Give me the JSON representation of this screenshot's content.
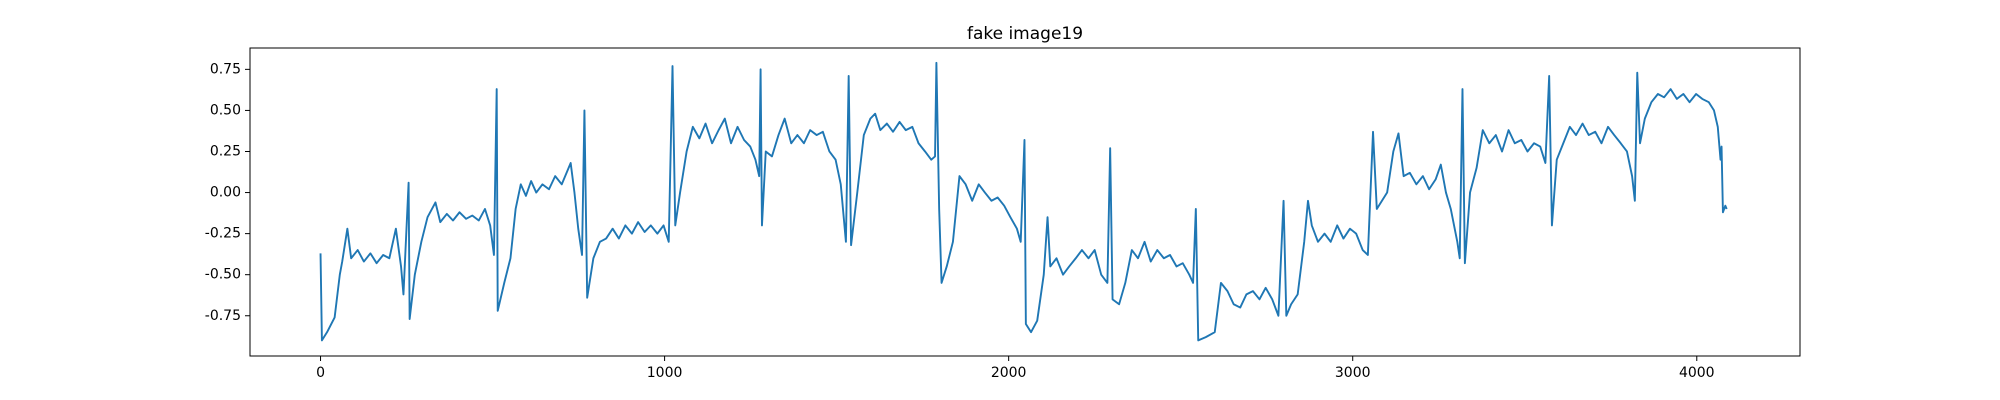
{
  "chart_data": {
    "type": "line",
    "title": "fake image19",
    "color": "#1f77b4",
    "x": [
      0,
      4,
      19,
      41,
      56,
      63,
      78,
      89,
      108,
      126,
      145,
      163,
      182,
      200,
      219,
      234,
      241,
      256,
      259,
      274,
      293,
      311,
      334,
      348,
      367,
      385,
      404,
      423,
      441,
      460,
      478,
      493,
      504,
      512,
      515,
      534,
      552,
      567,
      582,
      597,
      612,
      627,
      645,
      664,
      682,
      701,
      715,
      727,
      738,
      749,
      760,
      767,
      775,
      793,
      812,
      830,
      849,
      867,
      886,
      905,
      923,
      942,
      960,
      979,
      997,
      1012,
      1023,
      1031,
      1045,
      1064,
      1082,
      1101,
      1119,
      1138,
      1157,
      1175,
      1193,
      1212,
      1231,
      1249,
      1264,
      1275,
      1279,
      1283,
      1294,
      1312,
      1331,
      1349,
      1368,
      1386,
      1405,
      1423,
      1442,
      1460,
      1479,
      1497,
      1512,
      1527,
      1535,
      1542,
      1560,
      1579,
      1598,
      1612,
      1627,
      1646,
      1664,
      1683,
      1701,
      1720,
      1738,
      1757,
      1775,
      1786,
      1790,
      1798,
      1805,
      1820,
      1838,
      1857,
      1875,
      1894,
      1913,
      1931,
      1950,
      1968,
      1987,
      2005,
      2024,
      2035,
      2046,
      2050,
      2065,
      2083,
      2102,
      2113,
      2121,
      2139,
      2158,
      2176,
      2195,
      2213,
      2232,
      2250,
      2269,
      2287,
      2295,
      2302,
      2321,
      2339,
      2358,
      2376,
      2395,
      2413,
      2432,
      2451,
      2469,
      2488,
      2506,
      2525,
      2536,
      2544,
      2551,
      2573,
      2599,
      2617,
      2636,
      2654,
      2673,
      2691,
      2710,
      2729,
      2747,
      2766,
      2784,
      2799,
      2807,
      2821,
      2840,
      2859,
      2870,
      2881,
      2899,
      2918,
      2936,
      2955,
      2973,
      2992,
      3010,
      3029,
      3044,
      3059,
      3070,
      3085,
      3100,
      3118,
      3133,
      3148,
      3166,
      3185,
      3204,
      3222,
      3241,
      3256,
      3271,
      3285,
      3304,
      3311,
      3319,
      3326,
      3341,
      3360,
      3378,
      3397,
      3416,
      3434,
      3453,
      3471,
      3490,
      3508,
      3527,
      3545,
      3560,
      3571,
      3579,
      3593,
      3612,
      3631,
      3649,
      3668,
      3686,
      3705,
      3723,
      3742,
      3760,
      3779,
      3797,
      3812,
      3820,
      3827,
      3835,
      3849,
      3868,
      3887,
      3905,
      3924,
      3942,
      3961,
      3979,
      3998,
      4016,
      4035,
      4050,
      4061,
      4069,
      4072,
      4076,
      4083,
      4087
    ],
    "values": [
      -0.37,
      -0.9,
      -0.85,
      -0.76,
      -0.5,
      -0.42,
      -0.22,
      -0.4,
      -0.35,
      -0.42,
      -0.37,
      -0.43,
      -0.38,
      -0.4,
      -0.22,
      -0.45,
      -0.62,
      0.06,
      -0.77,
      -0.5,
      -0.3,
      -0.15,
      -0.06,
      -0.18,
      -0.13,
      -0.17,
      -0.12,
      -0.16,
      -0.14,
      -0.17,
      -0.1,
      -0.2,
      -0.38,
      0.63,
      -0.72,
      -0.55,
      -0.4,
      -0.1,
      0.05,
      -0.02,
      0.07,
      0.0,
      0.05,
      0.02,
      0.1,
      0.05,
      0.12,
      0.18,
      0.0,
      -0.22,
      -0.38,
      0.5,
      -0.64,
      -0.4,
      -0.3,
      -0.28,
      -0.22,
      -0.28,
      -0.2,
      -0.25,
      -0.18,
      -0.24,
      -0.2,
      -0.25,
      -0.2,
      -0.3,
      0.77,
      -0.2,
      0.0,
      0.25,
      0.4,
      0.33,
      0.42,
      0.3,
      0.38,
      0.45,
      0.3,
      0.4,
      0.32,
      0.28,
      0.2,
      0.1,
      0.75,
      -0.2,
      0.25,
      0.22,
      0.35,
      0.45,
      0.3,
      0.35,
      0.3,
      0.38,
      0.35,
      0.37,
      0.25,
      0.2,
      0.05,
      -0.3,
      0.71,
      -0.32,
      0.0,
      0.35,
      0.45,
      0.48,
      0.38,
      0.42,
      0.37,
      0.43,
      0.38,
      0.4,
      0.3,
      0.25,
      0.2,
      0.22,
      0.79,
      -0.1,
      -0.55,
      -0.45,
      -0.3,
      0.1,
      0.05,
      -0.05,
      0.05,
      0.0,
      -0.05,
      -0.03,
      -0.08,
      -0.15,
      -0.22,
      -0.3,
      0.32,
      -0.8,
      -0.85,
      -0.78,
      -0.5,
      -0.15,
      -0.45,
      -0.4,
      -0.5,
      -0.45,
      -0.4,
      -0.35,
      -0.4,
      -0.35,
      -0.5,
      -0.55,
      0.27,
      -0.65,
      -0.68,
      -0.55,
      -0.35,
      -0.4,
      -0.3,
      -0.42,
      -0.35,
      -0.4,
      -0.38,
      -0.45,
      -0.43,
      -0.5,
      -0.55,
      -0.1,
      -0.9,
      -0.88,
      -0.85,
      -0.55,
      -0.6,
      -0.68,
      -0.7,
      -0.62,
      -0.6,
      -0.65,
      -0.58,
      -0.65,
      -0.75,
      -0.05,
      -0.75,
      -0.68,
      -0.62,
      -0.3,
      -0.05,
      -0.2,
      -0.3,
      -0.25,
      -0.3,
      -0.2,
      -0.28,
      -0.22,
      -0.25,
      -0.35,
      -0.38,
      0.37,
      -0.1,
      -0.05,
      0.0,
      0.25,
      0.36,
      0.1,
      0.12,
      0.05,
      0.1,
      0.02,
      0.08,
      0.17,
      0.0,
      -0.1,
      -0.3,
      -0.4,
      0.63,
      -0.43,
      0.0,
      0.15,
      0.38,
      0.3,
      0.35,
      0.25,
      0.38,
      0.3,
      0.32,
      0.25,
      0.3,
      0.28,
      0.18,
      0.71,
      -0.2,
      0.2,
      0.3,
      0.4,
      0.35,
      0.42,
      0.35,
      0.37,
      0.3,
      0.4,
      0.35,
      0.3,
      0.25,
      0.1,
      -0.05,
      0.73,
      0.3,
      0.45,
      0.55,
      0.6,
      0.58,
      0.63,
      0.57,
      0.6,
      0.55,
      0.6,
      0.57,
      0.55,
      0.5,
      0.4,
      0.2,
      0.28,
      -0.12,
      -0.08,
      -0.1
    ],
    "xlim": [
      -205,
      4300
    ],
    "xticks": [
      0,
      1000,
      2000,
      3000,
      4000
    ],
    "ylim": [
      -0.995,
      0.88
    ],
    "yticks": [
      -0.75,
      {
        "value": -0.5,
        "label": "-0.50"
      },
      -0.25,
      {
        "value": 0,
        "label": "0.00"
      },
      0.25,
      {
        "value": 0.5,
        "label": "0.50"
      },
      0.75
    ]
  }
}
